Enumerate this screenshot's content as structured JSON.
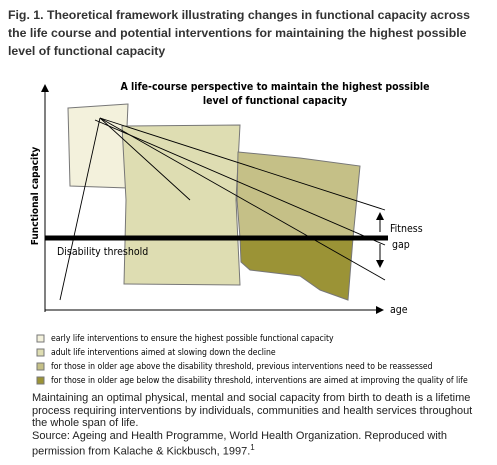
{
  "figure": {
    "title": "Fig. 1. Theoretical framework illustrating changes in functional capacity across the life course and potential interventions for maintaining the highest possible level of functional capacity"
  },
  "diagram": {
    "title_line1": "A life-course perspective to maintain the highest possible",
    "title_line2": "level of functional capacity",
    "y_axis_label": "Functional capacity",
    "x_axis_label": "age",
    "threshold_label": "Disability threshold",
    "gap_label_line1": "Fitness",
    "gap_label_line2": "gap"
  },
  "legend": [
    "early life interventions to ensure the highest possible functional capacity",
    "adult life interventions aimed at slowing down the decline",
    "for those in older age above the disability threshold, previous interventions need to be reassessed",
    "for those in older age below the disability threshold, interventions are aimed at improving the quality of life"
  ],
  "caption": {
    "text": "Maintaining an optimal physical, mental and social capacity from birth to death is a lifetime process requiring interventions by individuals, communities and health services throughout the whole span of life.",
    "source": "Source: Ageing and Health Programme, World Health Organization. Reproduced with permission from Kalache & Kickbusch, 1997.",
    "footnote": "1"
  }
}
